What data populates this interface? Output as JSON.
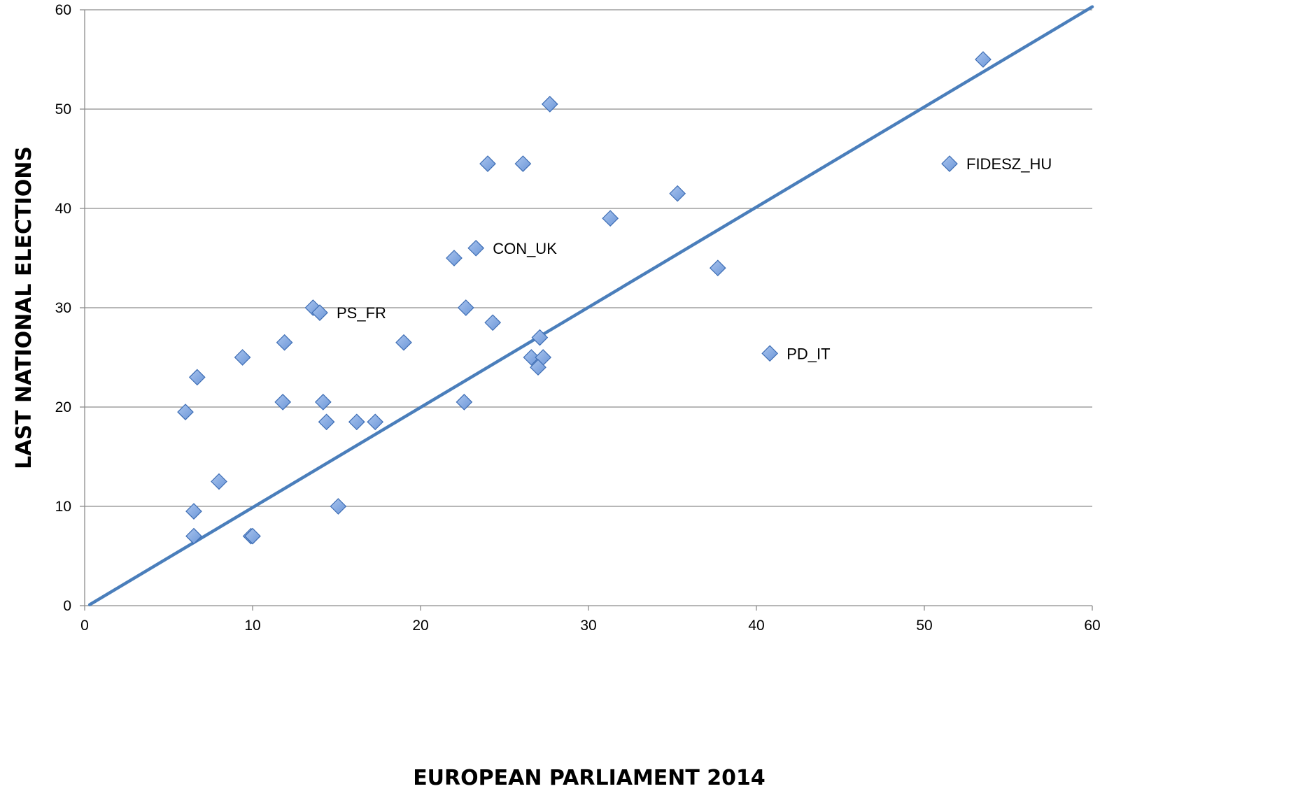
{
  "chart_data": {
    "type": "scatter",
    "title": "",
    "xlabel": "EUROPEAN PARLIAMENT 2014",
    "ylabel": "LAST NATIONAL ELECTIONS",
    "xlim": [
      0,
      60
    ],
    "ylim": [
      0,
      60
    ],
    "x_ticks": [
      0,
      10,
      20,
      30,
      40,
      50,
      60
    ],
    "y_ticks": [
      0,
      10,
      20,
      30,
      40,
      50,
      60
    ],
    "grid": "horizontal",
    "marker_color": "#6b96d8",
    "marker_edge_color": "#3d6db4",
    "line_color": "#4a7ebb",
    "series": [
      {
        "points": [
          {
            "x": 53.5,
            "y": 55.0
          },
          {
            "x": 27.7,
            "y": 50.5
          },
          {
            "x": 24.0,
            "y": 44.5
          },
          {
            "x": 26.1,
            "y": 44.5
          },
          {
            "x": 51.5,
            "y": 44.5,
            "label": "FIDESZ_HU"
          },
          {
            "x": 35.3,
            "y": 41.5
          },
          {
            "x": 31.3,
            "y": 39.0
          },
          {
            "x": 23.3,
            "y": 36.0,
            "label": "CON_UK"
          },
          {
            "x": 22.0,
            "y": 35.0
          },
          {
            "x": 37.7,
            "y": 34.0
          },
          {
            "x": 13.6,
            "y": 30.0
          },
          {
            "x": 14.0,
            "y": 29.5,
            "label": "PS_FR"
          },
          {
            "x": 22.7,
            "y": 30.0
          },
          {
            "x": 24.3,
            "y": 28.5
          },
          {
            "x": 11.9,
            "y": 26.5
          },
          {
            "x": 19.0,
            "y": 26.5
          },
          {
            "x": 27.1,
            "y": 27.0
          },
          {
            "x": 40.8,
            "y": 25.4,
            "label": "PD_IT"
          },
          {
            "x": 9.4,
            "y": 25.0
          },
          {
            "x": 26.6,
            "y": 25.0
          },
          {
            "x": 27.3,
            "y": 25.0
          },
          {
            "x": 27.0,
            "y": 24.0
          },
          {
            "x": 6.7,
            "y": 23.0
          },
          {
            "x": 11.8,
            "y": 20.5
          },
          {
            "x": 14.2,
            "y": 20.5
          },
          {
            "x": 22.6,
            "y": 20.5
          },
          {
            "x": 6.0,
            "y": 19.5
          },
          {
            "x": 14.4,
            "y": 18.5
          },
          {
            "x": 16.2,
            "y": 18.5
          },
          {
            "x": 17.3,
            "y": 18.5
          },
          {
            "x": 8.0,
            "y": 12.5
          },
          {
            "x": 15.1,
            "y": 10.0
          },
          {
            "x": 6.5,
            "y": 9.5
          },
          {
            "x": 6.5,
            "y": 7.0
          },
          {
            "x": 9.9,
            "y": 7.0
          },
          {
            "x": 10.0,
            "y": 7.0
          }
        ]
      }
    ],
    "trendline": {
      "x": [
        0.3,
        60
      ],
      "y": [
        0.1,
        60.3
      ]
    }
  }
}
